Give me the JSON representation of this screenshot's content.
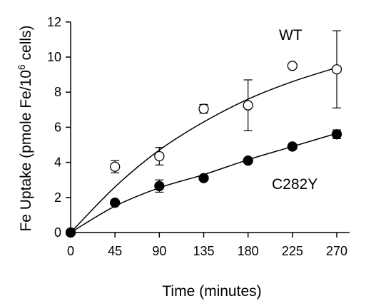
{
  "chart_data": {
    "type": "scatter",
    "xlabel": "Time (minutes)",
    "ylabel_parts": {
      "main": "Fe Uptake (pmole Fe/10",
      "sup": "6",
      "end": " cells)"
    },
    "xlim": [
      0,
      290
    ],
    "ylim": [
      0,
      12
    ],
    "x_ticks": [
      "0",
      "45",
      "90",
      "135",
      "180",
      "225",
      "270"
    ],
    "y_ticks": [
      "0",
      "2",
      "4",
      "6",
      "8",
      "10",
      "12"
    ],
    "grid": false,
    "legend": "none",
    "series": [
      {
        "name": "WT",
        "marker": "open-circle",
        "points": [
          {
            "x": 0,
            "y": 0,
            "err": 0
          },
          {
            "x": 45,
            "y": 3.75,
            "err": 0.35
          },
          {
            "x": 90,
            "y": 4.35,
            "err": 0.5
          },
          {
            "x": 135,
            "y": 7.05,
            "err": 0.25
          },
          {
            "x": 180,
            "y": 7.25,
            "err": 1.45
          },
          {
            "x": 225,
            "y": 9.5,
            "err": 0
          },
          {
            "x": 270,
            "y": 9.3,
            "err": 2.2
          }
        ],
        "fit": [
          {
            "x": 0,
            "y": 0
          },
          {
            "x": 45,
            "y": 2.6
          },
          {
            "x": 90,
            "y": 4.7
          },
          {
            "x": 135,
            "y": 6.3
          },
          {
            "x": 180,
            "y": 7.6
          },
          {
            "x": 225,
            "y": 8.6
          },
          {
            "x": 270,
            "y": 9.4
          }
        ]
      },
      {
        "name": "C282Y",
        "marker": "filled-circle",
        "points": [
          {
            "x": 0,
            "y": 0,
            "err": 0
          },
          {
            "x": 45,
            "y": 1.7,
            "err": 0
          },
          {
            "x": 90,
            "y": 2.65,
            "err": 0.35
          },
          {
            "x": 135,
            "y": 3.1,
            "err": 0
          },
          {
            "x": 180,
            "y": 4.1,
            "err": 0
          },
          {
            "x": 225,
            "y": 4.9,
            "err": 0
          },
          {
            "x": 270,
            "y": 5.6,
            "err": 0.25
          }
        ],
        "fit": [
          {
            "x": 0,
            "y": 0
          },
          {
            "x": 45,
            "y": 1.5
          },
          {
            "x": 90,
            "y": 2.55
          },
          {
            "x": 135,
            "y": 3.3
          },
          {
            "x": 180,
            "y": 4.15
          },
          {
            "x": 225,
            "y": 4.9
          },
          {
            "x": 270,
            "y": 5.65
          }
        ]
      }
    ]
  }
}
